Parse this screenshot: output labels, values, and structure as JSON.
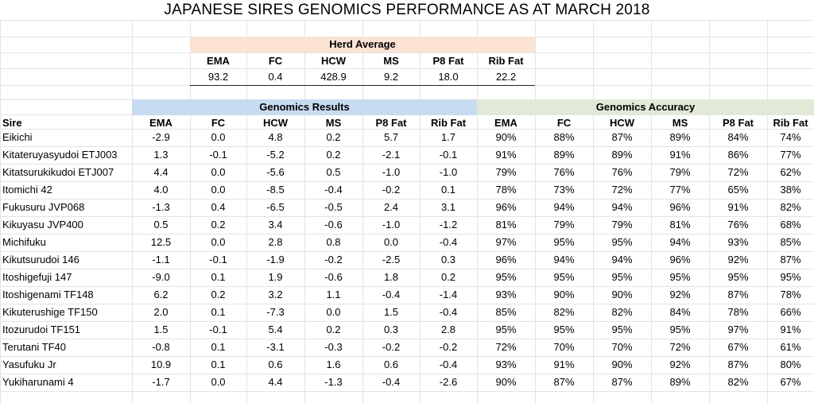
{
  "title": "JAPANESE SIRES GENOMICS PERFORMANCE AS AT MARCH 2018",
  "herd_average": {
    "label": "Herd Average",
    "headers": [
      "EMA",
      "FC",
      "HCW",
      "MS",
      "P8 Fat",
      "Rib Fat"
    ],
    "values": [
      "93.2",
      "0.4",
      "428.9",
      "9.2",
      "18.0",
      "22.2"
    ]
  },
  "genomics_results_label": "Genomics Results",
  "genomics_accuracy_label": "Genomics Accuracy",
  "table": {
    "sire_header": "Sire",
    "result_headers": [
      "EMA",
      "FC",
      "HCW",
      "MS",
      "P8 Fat",
      "Rib Fat"
    ],
    "accuracy_headers": [
      "EMA",
      "FC",
      "HCW",
      "MS",
      "P8 Fat",
      "Rib Fat"
    ],
    "rows": [
      {
        "sire": "Eikichi",
        "results": [
          "-2.9",
          "0.0",
          "4.8",
          "0.2",
          "5.7",
          "1.7"
        ],
        "accuracy": [
          "90%",
          "88%",
          "87%",
          "89%",
          "84%",
          "74%"
        ]
      },
      {
        "sire": "Kitateruyasyudoi ETJ003",
        "results": [
          "1.3",
          "-0.1",
          "-5.2",
          "0.2",
          "-2.1",
          "-0.1"
        ],
        "accuracy": [
          "91%",
          "89%",
          "89%",
          "91%",
          "86%",
          "77%"
        ]
      },
      {
        "sire": "Kitatsurukikudoi ETJ007",
        "results": [
          "4.4",
          "0.0",
          "-5.6",
          "0.5",
          "-1.0",
          "-1.0"
        ],
        "accuracy": [
          "79%",
          "76%",
          "76%",
          "79%",
          "72%",
          "62%"
        ]
      },
      {
        "sire": "Itomichi 42",
        "results": [
          "4.0",
          "0.0",
          "-8.5",
          "-0.4",
          "-0.2",
          "0.1"
        ],
        "accuracy": [
          "78%",
          "73%",
          "72%",
          "77%",
          "65%",
          "38%"
        ]
      },
      {
        "sire": "Fukusuru JVP068",
        "results": [
          "-1.3",
          "0.4",
          "-6.5",
          "-0.5",
          "2.4",
          "3.1"
        ],
        "accuracy": [
          "96%",
          "94%",
          "94%",
          "96%",
          "91%",
          "82%"
        ]
      },
      {
        "sire": "Kikuyasu JVP400",
        "results": [
          "0.5",
          "0.2",
          "3.4",
          "-0.6",
          "-1.0",
          "-1.2"
        ],
        "accuracy": [
          "81%",
          "79%",
          "79%",
          "81%",
          "76%",
          "68%"
        ]
      },
      {
        "sire": "Michifuku",
        "results": [
          "12.5",
          "0.0",
          "2.8",
          "0.8",
          "0.0",
          "-0.4"
        ],
        "accuracy": [
          "97%",
          "95%",
          "95%",
          "94%",
          "93%",
          "85%"
        ]
      },
      {
        "sire": "Kikutsurudoi 146",
        "results": [
          "-1.1",
          "-0.1",
          "-1.9",
          "-0.2",
          "-2.5",
          "0.3"
        ],
        "accuracy": [
          "96%",
          "94%",
          "94%",
          "96%",
          "92%",
          "87%"
        ]
      },
      {
        "sire": "Itoshigefuji 147",
        "results": [
          "-9.0",
          "0.1",
          "1.9",
          "-0.6",
          "1.8",
          "0.2"
        ],
        "accuracy": [
          "95%",
          "95%",
          "95%",
          "95%",
          "95%",
          "95%"
        ]
      },
      {
        "sire": "Itoshigenami TF148",
        "results": [
          "6.2",
          "0.2",
          "3.2",
          "1.1",
          "-0.4",
          "-1.4"
        ],
        "accuracy": [
          "93%",
          "90%",
          "90%",
          "92%",
          "87%",
          "78%"
        ]
      },
      {
        "sire": "Kikuterushige TF150",
        "results": [
          "2.0",
          "0.1",
          "-7.3",
          "0.0",
          "1.5",
          "-0.4"
        ],
        "accuracy": [
          "85%",
          "82%",
          "82%",
          "84%",
          "78%",
          "66%"
        ]
      },
      {
        "sire": "Itozurudoi TF151",
        "results": [
          "1.5",
          "-0.1",
          "5.4",
          "0.2",
          "0.3",
          "2.8"
        ],
        "accuracy": [
          "95%",
          "95%",
          "95%",
          "95%",
          "97%",
          "91%"
        ]
      },
      {
        "sire": "Terutani TF40",
        "results": [
          "-0.8",
          "0.1",
          "-3.1",
          "-0.3",
          "-0.2",
          "-0.2"
        ],
        "accuracy": [
          "72%",
          "70%",
          "70%",
          "72%",
          "67%",
          "61%"
        ]
      },
      {
        "sire": "Yasufuku Jr",
        "results": [
          "10.9",
          "0.1",
          "0.6",
          "1.6",
          "0.6",
          "-0.4"
        ],
        "accuracy": [
          "93%",
          "91%",
          "90%",
          "92%",
          "87%",
          "80%"
        ]
      },
      {
        "sire": "Yukiharunami 4",
        "results": [
          "-1.7",
          "0.0",
          "4.4",
          "-1.3",
          "-0.4",
          "-2.6"
        ],
        "accuracy": [
          "90%",
          "87%",
          "87%",
          "89%",
          "82%",
          "67%"
        ]
      }
    ]
  }
}
